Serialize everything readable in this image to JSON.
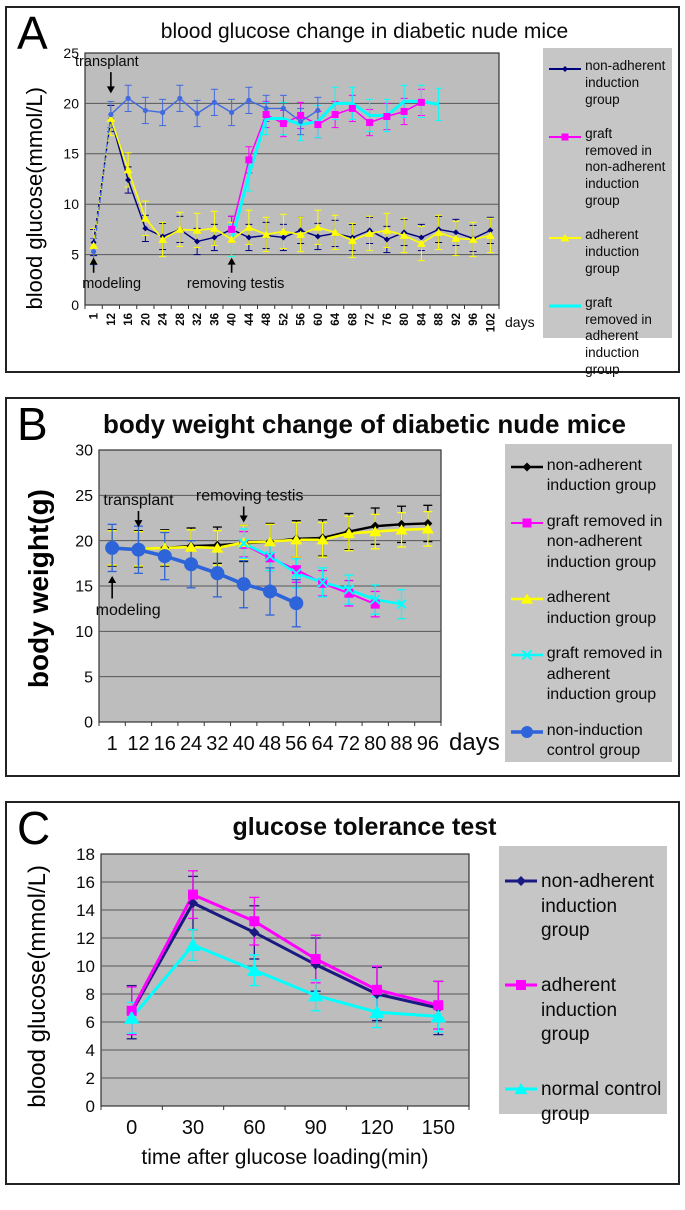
{
  "figure": {
    "colors": {
      "plot_bg": "#bdbdbd",
      "legend_bg": "#c6c6c6",
      "grid": "#58585a",
      "axis": "#333333",
      "annotation": "#000000"
    }
  },
  "chart_data": [
    {
      "type": "line",
      "letter": "A",
      "title": "blood glucose change in diabetic nude mice",
      "ylabel": "blood glucose(mmol/L)",
      "xlabel": "days",
      "ylim": [
        0,
        25
      ],
      "ytick_step": 5,
      "categories": [
        "1",
        "12",
        "16",
        "20",
        "24",
        "28",
        "32",
        "36",
        "40",
        "44",
        "48",
        "52",
        "56",
        "60",
        "64",
        "68",
        "72",
        "76",
        "80",
        "84",
        "88",
        "92",
        "96",
        "102"
      ],
      "layout_hints": {
        "grid": true,
        "legend_position": "right",
        "x_tick_rotate": true,
        "xlabel_position": "right"
      },
      "series": [
        {
          "name": "non-adherent induction group",
          "color": "#00007d",
          "marker": "diamond",
          "ms": 3,
          "lw": 1.4,
          "err": 1.3,
          "dash_until": 1,
          "values": [
            6.2,
            18.5,
            12.4,
            7.6,
            6.8,
            7.5,
            6.3,
            6.7,
            7.5,
            6.7,
            6.9,
            6.7,
            7.4,
            6.8,
            7.1,
            6.7,
            7.4,
            6.5,
            7.2,
            6.7,
            7.5,
            7.2,
            6.6,
            7.4
          ]
        },
        {
          "name": "graft removed in non-adherent induction group",
          "color": "#ff00ff",
          "marker": "square",
          "ms": 3.5,
          "lw": 1.5,
          "err": 1.3,
          "dash_until": 0,
          "values": [
            null,
            null,
            null,
            null,
            null,
            null,
            null,
            null,
            7.5,
            14.4,
            18.9,
            18.0,
            18.8,
            17.9,
            18.9,
            19.5,
            18.1,
            18.7,
            19.2,
            20.1,
            null,
            null,
            null,
            null
          ]
        },
        {
          "name": "adherent induction group",
          "color": "#ffff00",
          "marker": "triangle",
          "ms": 4,
          "lw": 1.6,
          "err": 1.7,
          "dash_until": 1,
          "values": [
            5.9,
            18.5,
            13.4,
            8.6,
            6.5,
            7.5,
            7.4,
            7.6,
            6.5,
            7.7,
            7.0,
            7.3,
            7.0,
            7.7,
            7.2,
            6.4,
            7.1,
            7.4,
            6.9,
            6.1,
            7.2,
            6.6,
            6.5,
            6.9
          ]
        },
        {
          "name": "graft removed in adherent induction group",
          "color": "#00ffff",
          "marker": "none",
          "ms": 0,
          "lw": 3,
          "err": 1.6,
          "dash_until": 0,
          "values": [
            null,
            null,
            null,
            null,
            null,
            null,
            null,
            null,
            6.4,
            12.9,
            18.5,
            18.5,
            17.9,
            18.2,
            20.0,
            20.0,
            18.8,
            18.8,
            20.2,
            20.2,
            19.9,
            null,
            null,
            null
          ]
        },
        {
          "name": "non-induction control group",
          "color": "#4169e1",
          "marker": "circle",
          "ms": 2.6,
          "lw": 1.4,
          "err": 1.3,
          "dash_until": 1,
          "values": [
            5.3,
            18.9,
            20.5,
            19.3,
            19.1,
            20.5,
            19.0,
            20.1,
            19.1,
            20.3,
            19.5,
            19.5,
            18.2,
            19.3,
            null,
            null,
            null,
            null,
            null,
            null,
            null,
            null,
            null,
            null
          ]
        }
      ],
      "annotations": [
        {
          "text": "transplant",
          "xi": 1,
          "y_text": 23.4,
          "y_tip": 21.0,
          "dir": "down",
          "dx": -4
        },
        {
          "text": "modeling",
          "xi": 0,
          "y_text": 3.0,
          "y_tip": 4.7,
          "dir": "up",
          "dx": 18
        },
        {
          "text": "removing testis",
          "xi": 8,
          "y_text": 3.0,
          "y_tip": 4.7,
          "dir": "up",
          "dx": 4
        }
      ]
    },
    {
      "type": "line",
      "letter": "B",
      "title": "body weight change of diabetic nude mice",
      "ylabel": "body weight(g)",
      "xlabel": "days",
      "ylim": [
        0,
        30
      ],
      "ytick_step": 5,
      "categories": [
        "1",
        "12",
        "16",
        "24",
        "32",
        "40",
        "48",
        "56",
        "64",
        "72",
        "80",
        "88",
        "96"
      ],
      "layout_hints": {
        "grid": true,
        "legend_position": "right",
        "x_tick_rotate": false,
        "xlabel_position": "right"
      },
      "series": [
        {
          "name": "non-adherent induction group",
          "color": "#000000",
          "marker": "diamond",
          "ms": 4.5,
          "lw": 2.4,
          "err": 2.0,
          "dash_until": 0,
          "values": [
            19.2,
            19.1,
            19.2,
            19.4,
            19.5,
            19.7,
            19.9,
            20.2,
            20.3,
            21.0,
            21.6,
            21.8,
            21.9
          ]
        },
        {
          "name": "graft removed in non-adherent induction group",
          "color": "#ff00ff",
          "marker": "square",
          "ms": 4.5,
          "lw": 2,
          "err": 1.4,
          "dash_until": 0,
          "values": [
            null,
            null,
            null,
            null,
            null,
            19.6,
            18.1,
            16.8,
            15.3,
            14.2,
            13.0,
            null,
            null
          ]
        },
        {
          "name": "adherent induction group",
          "color": "#ffff00",
          "marker": "triangle",
          "ms": 5.5,
          "lw": 2.6,
          "err": 1.9,
          "dash_until": 0,
          "values": [
            19.2,
            19.1,
            19.2,
            19.3,
            19.2,
            19.8,
            19.9,
            20.1,
            20.1,
            20.8,
            21.0,
            21.2,
            21.3
          ]
        },
        {
          "name": "graft removed in adherent induction group",
          "color": "#00ffff",
          "marker": "x",
          "ms": 4.5,
          "lw": 2.6,
          "err": 1.6,
          "dash_until": 0,
          "values": [
            null,
            null,
            null,
            null,
            null,
            19.7,
            18.3,
            16.4,
            15.4,
            14.6,
            13.5,
            13.0,
            null
          ]
        },
        {
          "name": "non-induction control group",
          "color": "#2e64d9",
          "marker": "circle",
          "ms": 7,
          "lw": 3.6,
          "err": 2.6,
          "dash_until": 0,
          "values": [
            19.2,
            19.0,
            18.3,
            17.4,
            16.4,
            15.2,
            14.4,
            13.1,
            null,
            null,
            null,
            null,
            null
          ]
        }
      ],
      "annotations": [
        {
          "text": "transplant",
          "xi": 1,
          "y_text": 23.6,
          "y_tip": 21.5,
          "dir": "down",
          "dx": 0
        },
        {
          "text": "removing testis",
          "xi": 5,
          "y_text": 24.1,
          "y_tip": 22.0,
          "dir": "down",
          "dx": 6
        },
        {
          "text": "modeling",
          "xi": 0,
          "y_text": 13.4,
          "y_tip": 16.1,
          "dir": "up",
          "dx": 16
        }
      ]
    },
    {
      "type": "line",
      "letter": "C",
      "title": "glucose tolerance test",
      "ylabel": "blood glucose(mmol/L)",
      "xlabel": "time after glucose loading(min)",
      "ylim": [
        0,
        18
      ],
      "ytick_step": 2,
      "categories": [
        "0",
        "30",
        "60",
        "90",
        "120",
        "150"
      ],
      "layout_hints": {
        "grid": true,
        "legend_position": "right",
        "x_tick_rotate": false,
        "xlabel_position": "center"
      },
      "series": [
        {
          "name": "non-adherent induction group",
          "color": "#1a1a80",
          "marker": "diamond",
          "ms": 5,
          "lw": 3,
          "err": 1.9,
          "dash_until": 0,
          "values": [
            6.7,
            14.5,
            12.4,
            10.1,
            8.0,
            7.0
          ]
        },
        {
          "name": "adherent induction group",
          "color": "#ff00ff",
          "marker": "square",
          "ms": 5,
          "lw": 3,
          "err": 1.7,
          "dash_until": 0,
          "values": [
            6.8,
            15.1,
            13.2,
            10.5,
            8.3,
            7.2
          ]
        },
        {
          "name": "normal control group",
          "color": "#00ffff",
          "marker": "triangle",
          "ms": 7,
          "lw": 3,
          "err": 1.1,
          "dash_until": 0,
          "values": [
            6.3,
            11.5,
            9.7,
            7.9,
            6.7,
            6.4
          ]
        }
      ],
      "annotations": []
    }
  ]
}
